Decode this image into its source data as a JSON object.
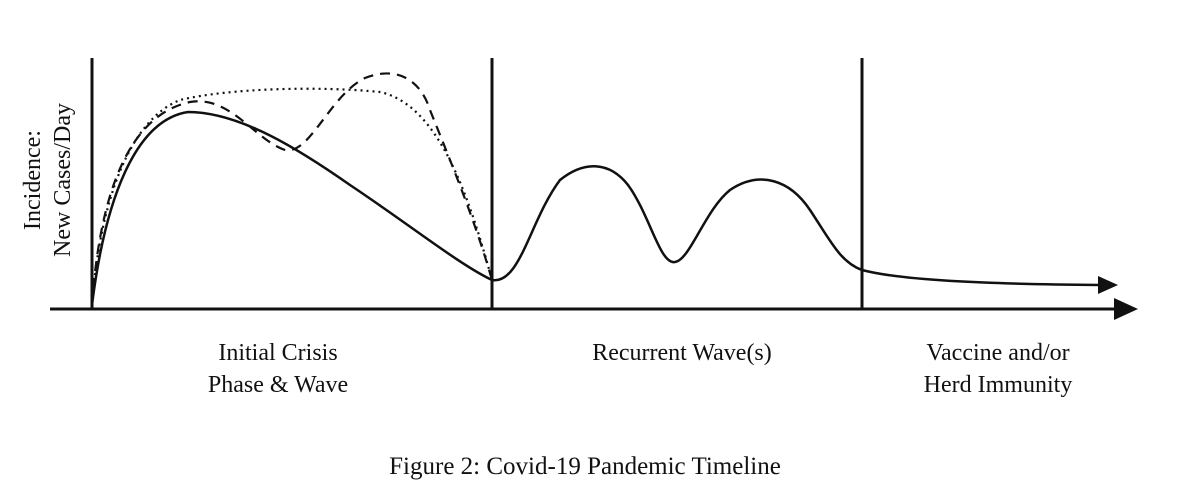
{
  "y_axis_label": [
    "Incidence:",
    "New Cases/Day"
  ],
  "phases": [
    {
      "lines": [
        "Initial Crisis",
        "Phase & Wave"
      ]
    },
    {
      "lines": [
        "Recurrent Wave(s)"
      ]
    },
    {
      "lines": [
        "Vaccine and/or",
        "Herd Immunity"
      ]
    }
  ],
  "caption": "Figure 2: Covid-19 Pandemic Timeline",
  "line_color": "#111111"
}
